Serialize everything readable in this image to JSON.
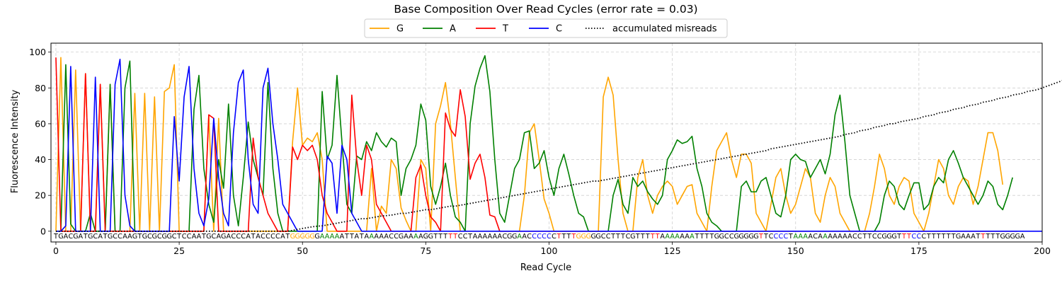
{
  "chart_data": {
    "type": "line",
    "title": "Base Composition Over Read Cycles (error rate = 0.03)",
    "xlabel": "Read Cycle",
    "ylabel": "Fluorescence Intensity",
    "xlim": [
      -1,
      200
    ],
    "ylim": [
      -6,
      105
    ],
    "xticks": [
      0,
      25,
      50,
      75,
      100,
      125,
      150,
      175,
      200
    ],
    "yticks": [
      0,
      20,
      40,
      60,
      80,
      100
    ],
    "grid": true,
    "legend_position": "top-center",
    "base_colors": {
      "G": "#ffa500",
      "A": "#008000",
      "T": "#ff0000",
      "C": "#0000ff"
    },
    "misread_color": "#000000",
    "sequence": "TGACGATGCATGCCAAGTGCGCGGCTCCAATGCAGACCCATACCCCATGGGGGGAAAAATTATAAAAACCGAAAAGGTTTTTCCTAAAAAACGGAACCCCCCTTTTGGGGGCCTTTCGTTTTTAAAAAAATTTTGGCCGGGGGTTCCCCTAAAACAAAAAAACCTTCCGGGTTTCCCTTTTTTGAAATTTTTGGGGA",
    "misread_mask": "0000000000000000000000000000000000000000000000001111101111000000100000000100000011000000000000100111101001111000000000000110111001000000000000010011101110001000000000000000111100000000000010000000011001111",
    "series": [
      {
        "name": "G",
        "color": "#ffa500",
        "values": [
          0,
          97,
          0,
          0,
          90,
          0,
          88,
          0,
          0,
          82,
          0,
          82,
          0,
          0,
          0,
          0,
          77,
          0,
          77,
          0,
          75,
          0,
          78,
          80,
          93,
          0,
          0,
          0,
          0,
          0,
          0,
          65,
          0,
          63,
          0,
          0,
          0,
          0,
          0,
          0,
          0,
          0,
          0,
          0,
          0,
          0,
          0,
          0,
          50,
          80,
          48,
          52,
          50,
          55,
          40,
          0,
          0,
          0,
          0,
          0,
          0,
          0,
          0,
          0,
          35,
          0,
          14,
          10,
          40,
          35,
          13,
          6,
          0,
          0,
          40,
          35,
          0,
          60,
          70,
          83,
          60,
          30,
          0,
          0,
          0,
          0,
          0,
          0,
          0,
          0,
          0,
          0,
          0,
          0,
          0,
          20,
          55,
          60,
          40,
          18,
          10,
          0,
          0,
          0,
          0,
          0,
          0,
          0,
          0,
          0,
          0,
          75,
          86,
          76,
          40,
          10,
          0,
          0,
          30,
          40,
          20,
          10,
          20,
          25,
          28,
          25,
          15,
          20,
          25,
          26,
          10,
          5,
          0,
          25,
          45,
          50,
          55,
          40,
          30,
          43,
          43,
          38,
          10,
          5,
          0,
          15,
          30,
          35,
          20,
          10,
          15,
          25,
          35,
          30,
          10,
          5,
          20,
          30,
          25,
          10,
          5,
          0,
          0,
          0,
          0,
          10,
          25,
          43,
          35,
          20,
          15,
          25,
          30,
          28,
          10,
          5,
          0,
          10,
          25,
          40,
          35,
          20,
          15,
          25,
          30,
          28,
          15,
          25,
          40,
          55,
          55,
          45,
          26
        ]
      },
      {
        "name": "A",
        "color": "#008000",
        "values": [
          0,
          0,
          93,
          4,
          0,
          0,
          0,
          10,
          0,
          0,
          0,
          82,
          0,
          0,
          80,
          95,
          0,
          0,
          0,
          0,
          0,
          0,
          0,
          0,
          0,
          0,
          0,
          0,
          68,
          87,
          35,
          15,
          5,
          40,
          24,
          71,
          20,
          3,
          30,
          61,
          40,
          30,
          20,
          83,
          35,
          10,
          0,
          0,
          0,
          0,
          0,
          0,
          0,
          0,
          78,
          40,
          48,
          87,
          50,
          15,
          10,
          42,
          40,
          50,
          45,
          55,
          50,
          47,
          52,
          50,
          20,
          35,
          40,
          48,
          71,
          62,
          25,
          15,
          25,
          38,
          20,
          8,
          5,
          0,
          60,
          81,
          91,
          98,
          78,
          40,
          10,
          5,
          20,
          35,
          40,
          55,
          56,
          35,
          38,
          45,
          30,
          20,
          35,
          43,
          32,
          20,
          10,
          8,
          0,
          0,
          0,
          0,
          0,
          20,
          29,
          15,
          10,
          30,
          25,
          28,
          22,
          18,
          15,
          20,
          40,
          45,
          51,
          49,
          50,
          53,
          35,
          25,
          10,
          5,
          3,
          0,
          0,
          0,
          0,
          25,
          28,
          22,
          22,
          28,
          30,
          20,
          10,
          8,
          20,
          40,
          43,
          40,
          39,
          30,
          35,
          40,
          32,
          43,
          65,
          76,
          50,
          20,
          10,
          0,
          0,
          0,
          0,
          5,
          20,
          28,
          25,
          15,
          12,
          20,
          27,
          27,
          12,
          15,
          25,
          30,
          27,
          40,
          45,
          38,
          30,
          25,
          20,
          15,
          20,
          28,
          25,
          15,
          12,
          20,
          30
        ]
      },
      {
        "name": "T",
        "color": "#ff0000",
        "values": [
          97,
          0,
          0,
          0,
          0,
          0,
          88,
          0,
          0,
          82,
          0,
          0,
          0,
          0,
          0,
          0,
          0,
          0,
          0,
          0,
          0,
          0,
          0,
          0,
          0,
          0,
          0,
          0,
          0,
          0,
          0,
          65,
          63,
          0,
          0,
          0,
          0,
          0,
          0,
          0,
          52,
          30,
          20,
          10,
          5,
          0,
          0,
          0,
          47,
          40,
          48,
          45,
          48,
          40,
          20,
          10,
          5,
          0,
          0,
          0,
          76,
          40,
          20,
          48,
          40,
          15,
          10,
          5,
          0,
          0,
          0,
          0,
          0,
          30,
          37,
          20,
          8,
          5,
          0,
          66,
          57,
          53,
          79,
          64,
          29,
          38,
          43,
          30,
          9,
          8,
          0,
          0,
          0,
          0,
          0,
          0,
          0,
          0,
          0,
          0,
          0,
          0,
          0,
          0,
          0,
          0,
          0,
          0,
          0,
          0,
          0,
          0,
          0,
          0,
          0,
          0,
          0,
          0,
          0,
          0,
          0,
          0,
          0,
          0,
          0,
          0,
          0,
          0,
          0,
          0,
          0,
          0,
          0,
          0,
          0,
          0,
          0,
          0,
          0,
          0,
          0,
          0,
          0,
          0,
          0,
          0,
          0,
          0,
          0,
          0,
          0,
          0,
          0,
          0,
          0,
          0,
          0,
          0,
          0,
          0,
          0,
          0,
          0,
          0,
          0,
          0,
          0,
          0,
          0,
          0,
          0,
          0,
          0,
          0,
          0,
          0,
          0,
          0,
          0,
          0,
          0,
          0,
          0,
          0,
          0,
          0,
          0,
          0,
          0,
          0,
          0,
          0,
          0,
          0,
          0,
          0
        ]
      },
      {
        "name": "C",
        "color": "#0000ff",
        "values": [
          0,
          0,
          3,
          92,
          0,
          0,
          0,
          0,
          86,
          0,
          0,
          0,
          82,
          96,
          20,
          3,
          0,
          0,
          0,
          0,
          0,
          0,
          0,
          0,
          64,
          28,
          75,
          92,
          35,
          10,
          3,
          18,
          63,
          30,
          10,
          3,
          55,
          83,
          90,
          40,
          15,
          10,
          80,
          91,
          60,
          40,
          15,
          10,
          5,
          0,
          0,
          0,
          0,
          0,
          0,
          42,
          38,
          10,
          48,
          40,
          10,
          5,
          0,
          0,
          0,
          0,
          0,
          0,
          0,
          0,
          0,
          0,
          0,
          0,
          0,
          0,
          0,
          0,
          0,
          0,
          0,
          0,
          0,
          0,
          0,
          0,
          0,
          0,
          0,
          0,
          0,
          0,
          0,
          0,
          0,
          0,
          0,
          0,
          0,
          0,
          0,
          0,
          0,
          0,
          0,
          0,
          0,
          0,
          0,
          0,
          0,
          0,
          0,
          0,
          0,
          0,
          0,
          0,
          0,
          0,
          0,
          0,
          0,
          0,
          0,
          0,
          0,
          0,
          0,
          0,
          0,
          0,
          0,
          0,
          0,
          0,
          0,
          0,
          0,
          0,
          0,
          0,
          0,
          0,
          0,
          0,
          0,
          0,
          0,
          0,
          0,
          0,
          0,
          0,
          0,
          0,
          0,
          0,
          0,
          0,
          0,
          0,
          0,
          0,
          0,
          0,
          0,
          0,
          0,
          0,
          0,
          0,
          0,
          0,
          0,
          0,
          0,
          0,
          0,
          0,
          0,
          0,
          0,
          0,
          0,
          0,
          0,
          0,
          0,
          0,
          0,
          0,
          0,
          0,
          0,
          0,
          0,
          0,
          0,
          0,
          0
        ]
      },
      {
        "name": "accumulated misreads",
        "color": "#000000",
        "dashed": true,
        "values": [
          0,
          0,
          0,
          0,
          0,
          0,
          0,
          0,
          0,
          0,
          0,
          0,
          0,
          0,
          0,
          0,
          0,
          0,
          0,
          0,
          0,
          0,
          0,
          0,
          0,
          0,
          0,
          0,
          0,
          0,
          0,
          0,
          0,
          0,
          0,
          0,
          0,
          0,
          0,
          0,
          0,
          0,
          0,
          0,
          0,
          0,
          0,
          0,
          0.5,
          1,
          1.5,
          2,
          2.5,
          2.8,
          3,
          3.5,
          4,
          4.5,
          5,
          5.5,
          6,
          6.5,
          7,
          7,
          7.5,
          8,
          8.5,
          8.7,
          9,
          9.5,
          10,
          10,
          10.5,
          11,
          11.5,
          12,
          12,
          12.5,
          13,
          13.5,
          14,
          14,
          14.5,
          15,
          15.5,
          16,
          16.5,
          17,
          17.5,
          18,
          18.5,
          19,
          19.5,
          20,
          20.5,
          21,
          21.5,
          22,
          22.5,
          23,
          23.5,
          24,
          24.5,
          25,
          25.5,
          26,
          26.5,
          27,
          27.5,
          28,
          28,
          28.5,
          29,
          29.5,
          30,
          30.5,
          31,
          31.5,
          32,
          32.5,
          33,
          33.5,
          34,
          34.5,
          35,
          35.5,
          36,
          36.5,
          37,
          37.5,
          38,
          38.5,
          39,
          39.5,
          40,
          40.5,
          41,
          41.5,
          42,
          42.5,
          43,
          43.5,
          44,
          44.5,
          45,
          46,
          46.5,
          47,
          47.5,
          48,
          48.5,
          49,
          49.5,
          50,
          50.5,
          51,
          51.5,
          52,
          52.5,
          53,
          54,
          54.5,
          55,
          56,
          56.5,
          57,
          58,
          58.5,
          59,
          60,
          60,
          61,
          61.5,
          62,
          62.5,
          63,
          64,
          64.5,
          65,
          66,
          66.5,
          67,
          68,
          68.5,
          69,
          70,
          70.5,
          71,
          72,
          72.5,
          73,
          74,
          74.5,
          75,
          76,
          76.5,
          77,
          78,
          78.5,
          79,
          80,
          81,
          82,
          83,
          84,
          85,
          86,
          87,
          88,
          89,
          90,
          91,
          92,
          92
        ]
      }
    ]
  }
}
